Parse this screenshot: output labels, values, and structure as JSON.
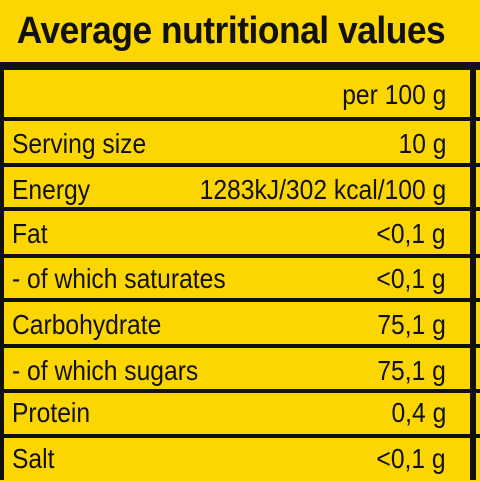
{
  "title": "Average nutritional values",
  "header": {
    "label": "",
    "value": "per 100 g"
  },
  "rows": [
    {
      "label": "Serving size",
      "value": "10 g"
    },
    {
      "label": "Energy",
      "value": "1283kJ/302 kcal/100 g"
    },
    {
      "label": "Fat",
      "value": "<0,1 g"
    },
    {
      "label": "- of which saturates",
      "value": "<0,1 g"
    },
    {
      "label": "Carbohydrate",
      "value": "75,1 g"
    },
    {
      "label": "- of which sugars",
      "value": "75,1 g"
    },
    {
      "label": "Protein",
      "value": "0,4 g"
    },
    {
      "label": "Salt",
      "value": "<0,1 g"
    }
  ],
  "colors": {
    "background": "#fcd600",
    "lines": "#111111",
    "text": "#111111"
  }
}
